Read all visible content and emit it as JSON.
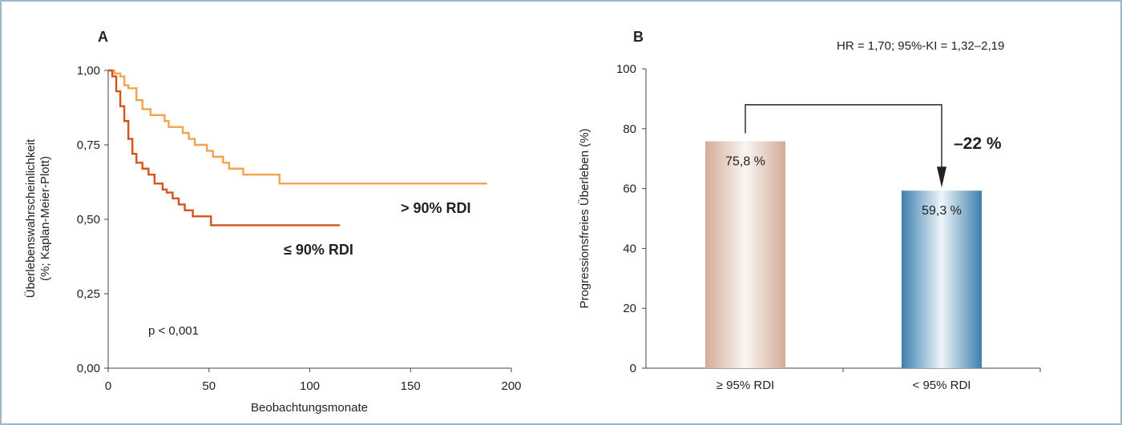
{
  "chart_data": [
    {
      "panel": "A",
      "type": "line",
      "xlabel": "Beobachtungsmonate",
      "ylabel_line1": "Überlebenswahrscheinlichkeit",
      "ylabel_line2": "(%; Kaplan-Meier-Plott)",
      "xlim": [
        0,
        200
      ],
      "ylim": [
        0,
        1
      ],
      "x_ticks": [
        "0",
        "50",
        "100",
        "150",
        "200"
      ],
      "y_ticks": [
        "0,00",
        "0,25",
        "0,50",
        "0,75",
        "1,00"
      ],
      "annotation": "p < 0,001",
      "colors": {
        "high": "#f5a34a",
        "low": "#d6521b"
      },
      "series": [
        {
          "name": "> 90% RDI",
          "color": "#f5a34a",
          "x": [
            0,
            3,
            6,
            8,
            10,
            14,
            17,
            21,
            27,
            28,
            30,
            32,
            37,
            40,
            43,
            49,
            52,
            57,
            60,
            67,
            76,
            85,
            188
          ],
          "y": [
            1.0,
            0.99,
            0.98,
            0.95,
            0.94,
            0.9,
            0.87,
            0.85,
            0.85,
            0.83,
            0.81,
            0.81,
            0.79,
            0.77,
            0.75,
            0.73,
            0.71,
            0.69,
            0.67,
            0.65,
            0.65,
            0.62,
            0.62
          ]
        },
        {
          "name": "≤ 90% RDI",
          "color": "#d6521b",
          "x": [
            0,
            2,
            4,
            6,
            8,
            10,
            12,
            14,
            17,
            20,
            23,
            27,
            29,
            32,
            35,
            38,
            42,
            51,
            115
          ],
          "y": [
            1.0,
            0.98,
            0.93,
            0.88,
            0.83,
            0.77,
            0.72,
            0.69,
            0.67,
            0.65,
            0.62,
            0.6,
            0.59,
            0.57,
            0.55,
            0.53,
            0.51,
            0.48,
            0.48
          ]
        }
      ]
    },
    {
      "panel": "B",
      "type": "bar",
      "ylabel": "Progressionsfreies Überleben (%)",
      "ylim": [
        0,
        100
      ],
      "y_ticks": [
        "0",
        "20",
        "40",
        "60",
        "80",
        "100"
      ],
      "categories": [
        "≥ 95% RDI",
        "< 95% RDI"
      ],
      "values": [
        75.8,
        59.3
      ],
      "value_labels": [
        "75,8 %",
        "59,3 %"
      ],
      "colors": [
        "#d9b7a8",
        "#3f86b3"
      ],
      "hr_text": "HR = 1,70; 95%-KI = 1,32–2,19",
      "difference_label": "–22 %"
    }
  ]
}
